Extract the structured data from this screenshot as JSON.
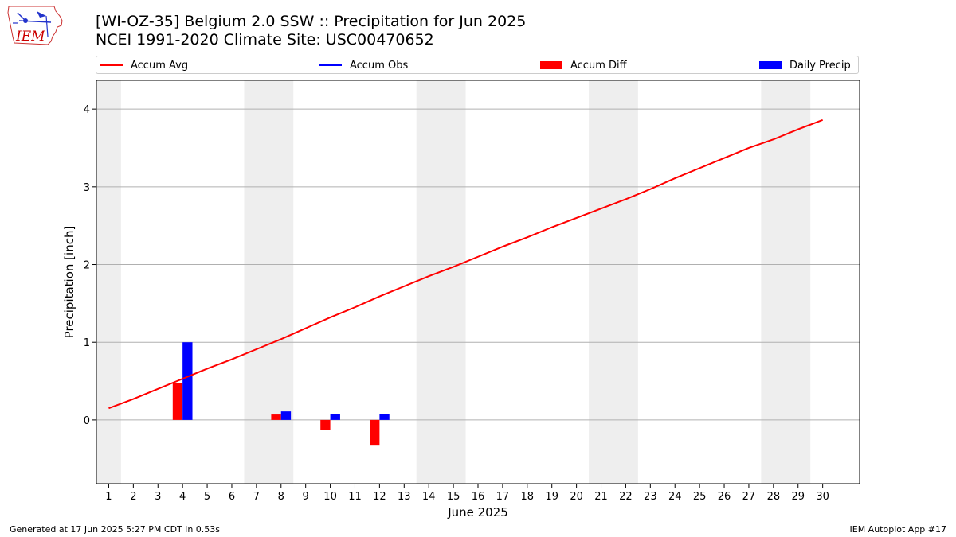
{
  "header": {
    "title_line1": "[WI-OZ-35] Belgium 2.0 SSW :: Precipitation for Jun 2025",
    "title_line2": "NCEI 1991-2020 Climate Site: USC00470652"
  },
  "logo": {
    "text": "IEM",
    "color": "#cc0000"
  },
  "footer": {
    "left": "Generated at 17 Jun 2025 5:27 PM CDT in 0.53s",
    "right": "IEM Autoplot App #17"
  },
  "legend": [
    {
      "label": "Accum Avg",
      "kind": "line",
      "color": "#ff0000"
    },
    {
      "label": "Accum Obs",
      "kind": "line",
      "color": "#0000ff"
    },
    {
      "label": "Accum Diff",
      "kind": "patch",
      "color": "#ff0000"
    },
    {
      "label": "Daily Precip",
      "kind": "patch",
      "color": "#0000ff"
    }
  ],
  "chart_data": {
    "type": "bar",
    "xlabel": "June 2025",
    "ylabel": "Precipitation [inch]",
    "x": [
      1,
      2,
      3,
      4,
      5,
      6,
      7,
      8,
      9,
      10,
      11,
      12,
      13,
      14,
      15,
      16,
      17,
      18,
      19,
      20,
      21,
      22,
      23,
      24,
      25,
      26,
      27,
      28,
      29,
      30
    ],
    "xlim": [
      0.5,
      31.5
    ],
    "ylim": [
      -0.82,
      4.37
    ],
    "yticks": [
      0,
      1,
      2,
      3,
      4
    ],
    "grid": "y",
    "legend_position": "top",
    "weekend_shading": [
      [
        0.5,
        1.5
      ],
      [
        6.5,
        8.5
      ],
      [
        13.5,
        15.5
      ],
      [
        20.5,
        22.5
      ],
      [
        27.5,
        29.5
      ]
    ],
    "series": [
      {
        "name": "Accum Avg",
        "kind": "line",
        "color": "#ff0000",
        "values": [
          0.15,
          0.27,
          0.4,
          0.53,
          0.66,
          0.78,
          0.91,
          1.04,
          1.18,
          1.32,
          1.45,
          1.59,
          1.72,
          1.85,
          1.97,
          2.1,
          2.23,
          2.35,
          2.48,
          2.6,
          2.72,
          2.84,
          2.97,
          3.11,
          3.24,
          3.37,
          3.5,
          3.61,
          3.74,
          3.86
        ]
      },
      {
        "name": "Accum Diff",
        "kind": "bar",
        "color": "#ff0000",
        "offset": -0.2,
        "values": [
          null,
          null,
          null,
          0.47,
          null,
          null,
          null,
          0.07,
          null,
          -0.13,
          null,
          -0.32,
          null,
          null,
          null,
          null,
          null,
          null,
          null,
          null,
          null,
          null,
          null,
          null,
          null,
          null,
          null,
          null,
          null,
          null
        ]
      },
      {
        "name": "Daily Precip",
        "kind": "bar",
        "color": "#0000ff",
        "offset": 0.2,
        "values": [
          null,
          null,
          null,
          1.0,
          null,
          null,
          null,
          0.11,
          null,
          0.08,
          null,
          0.08,
          null,
          null,
          null,
          null,
          null,
          null,
          null,
          null,
          null,
          null,
          null,
          null,
          null,
          null,
          null,
          null,
          null,
          null
        ]
      }
    ]
  }
}
